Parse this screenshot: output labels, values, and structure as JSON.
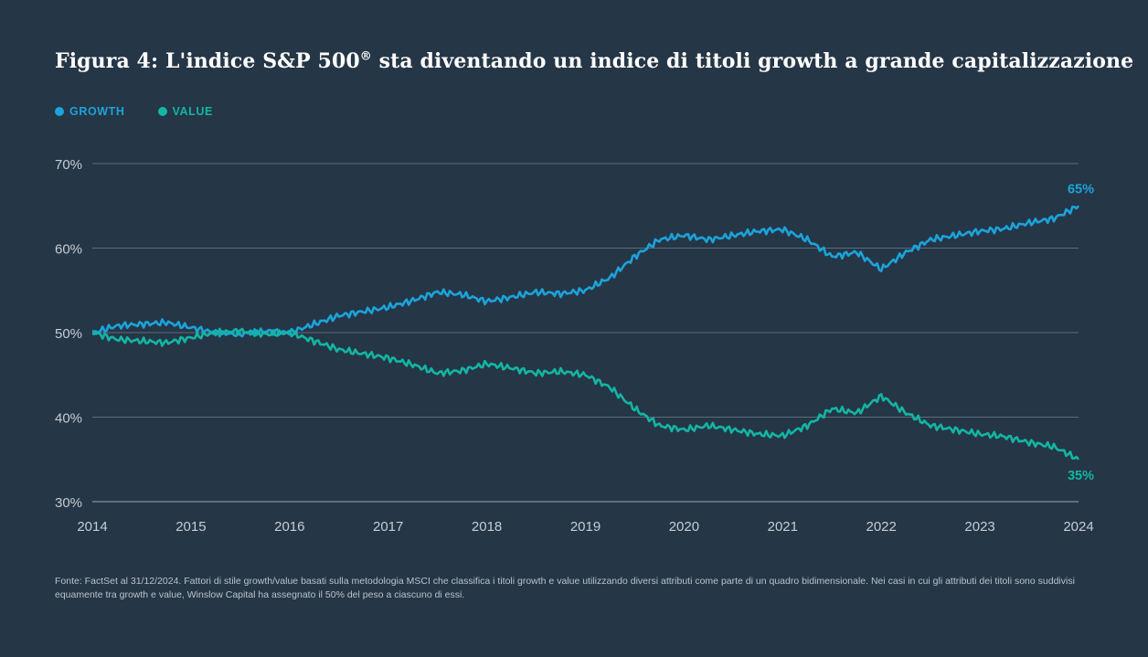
{
  "title_main": "Figura 4: L'indice S&P 500",
  "title_reg": "®",
  "title_rest": " sta diventando un indice di titoli growth a grande capitalizzazione",
  "colors": {
    "background": "#253646",
    "growth": "#1ba3da",
    "value": "#13b5a3",
    "grid": "#5d6c79",
    "axis_text": "#c5cdd4"
  },
  "chart_data": {
    "type": "line",
    "title": "Figura 4: L'indice S&P 500® sta diventando un indice di titoli growth a grande capitalizzazione",
    "xlabel": "",
    "ylabel": "",
    "ylim": [
      30,
      70
    ],
    "xlim": [
      2014,
      2024
    ],
    "y_ticks": [
      30,
      40,
      50,
      60,
      70
    ],
    "y_tick_labels": [
      "30%",
      "40%",
      "50%",
      "60%",
      "70%"
    ],
    "x_ticks": [
      2014,
      2015,
      2016,
      2017,
      2018,
      2019,
      2020,
      2021,
      2022,
      2023,
      2024
    ],
    "x_tick_labels": [
      "2014",
      "2015",
      "2016",
      "2017",
      "2018",
      "2019",
      "2020",
      "2021",
      "2022",
      "2023",
      "2024"
    ],
    "grid": true,
    "legend_position": "top-left",
    "series": [
      {
        "name": "GROWTH",
        "end_label": "65%",
        "x": [
          2014.0,
          2014.25,
          2014.5,
          2014.75,
          2015.0,
          2015.25,
          2015.5,
          2015.75,
          2016.0,
          2016.25,
          2016.5,
          2016.75,
          2017.0,
          2017.25,
          2017.5,
          2017.75,
          2018.0,
          2018.25,
          2018.5,
          2018.75,
          2019.0,
          2019.25,
          2019.5,
          2019.75,
          2020.0,
          2020.25,
          2020.5,
          2020.75,
          2021.0,
          2021.25,
          2021.5,
          2021.75,
          2022.0,
          2022.25,
          2022.5,
          2022.75,
          2023.0,
          2023.25,
          2023.5,
          2023.75,
          2024.0
        ],
        "values": [
          50.0,
          50.8,
          51.0,
          51.2,
          50.6,
          50.0,
          49.8,
          50.2,
          50.0,
          51.0,
          52.0,
          52.5,
          53.0,
          53.8,
          54.8,
          54.5,
          53.7,
          54.2,
          54.8,
          54.6,
          55.0,
          56.5,
          59.0,
          61.0,
          61.5,
          61.0,
          61.5,
          62.0,
          62.2,
          61.0,
          59.0,
          59.5,
          57.5,
          59.5,
          61.0,
          61.5,
          62.0,
          62.3,
          63.0,
          63.5,
          65.0
        ]
      },
      {
        "name": "VALUE",
        "end_label": "35%",
        "x": [
          2014.0,
          2014.25,
          2014.5,
          2014.75,
          2015.0,
          2015.25,
          2015.5,
          2015.75,
          2016.0,
          2016.25,
          2016.5,
          2016.75,
          2017.0,
          2017.25,
          2017.5,
          2017.75,
          2018.0,
          2018.25,
          2018.5,
          2018.75,
          2019.0,
          2019.25,
          2019.5,
          2019.75,
          2020.0,
          2020.25,
          2020.5,
          2020.75,
          2021.0,
          2021.25,
          2021.5,
          2021.75,
          2022.0,
          2022.25,
          2022.5,
          2022.75,
          2023.0,
          2023.25,
          2023.5,
          2023.75,
          2024.0
        ],
        "values": [
          50.0,
          49.2,
          49.0,
          48.8,
          49.4,
          50.0,
          50.2,
          49.8,
          50.0,
          49.0,
          48.0,
          47.5,
          47.0,
          46.2,
          45.2,
          45.5,
          46.3,
          45.8,
          45.2,
          45.4,
          45.0,
          43.5,
          41.0,
          39.0,
          38.5,
          39.0,
          38.5,
          38.0,
          37.8,
          39.0,
          41.0,
          40.5,
          42.5,
          40.5,
          39.0,
          38.5,
          38.0,
          37.7,
          37.0,
          36.5,
          35.0
        ]
      }
    ]
  },
  "source": "Fonte: FactSet al 31/12/2024. Fattori di stile growth/value basati sulla metodologia MSCI che classifica i titoli growth e value utilizzando diversi attributi come parte di un quadro bidimensionale. Nei casi in cui gli attributi dei titoli sono suddivisi equamente tra growth e value, Winslow Capital ha assegnato il 50% del peso a ciascuno di essi."
}
